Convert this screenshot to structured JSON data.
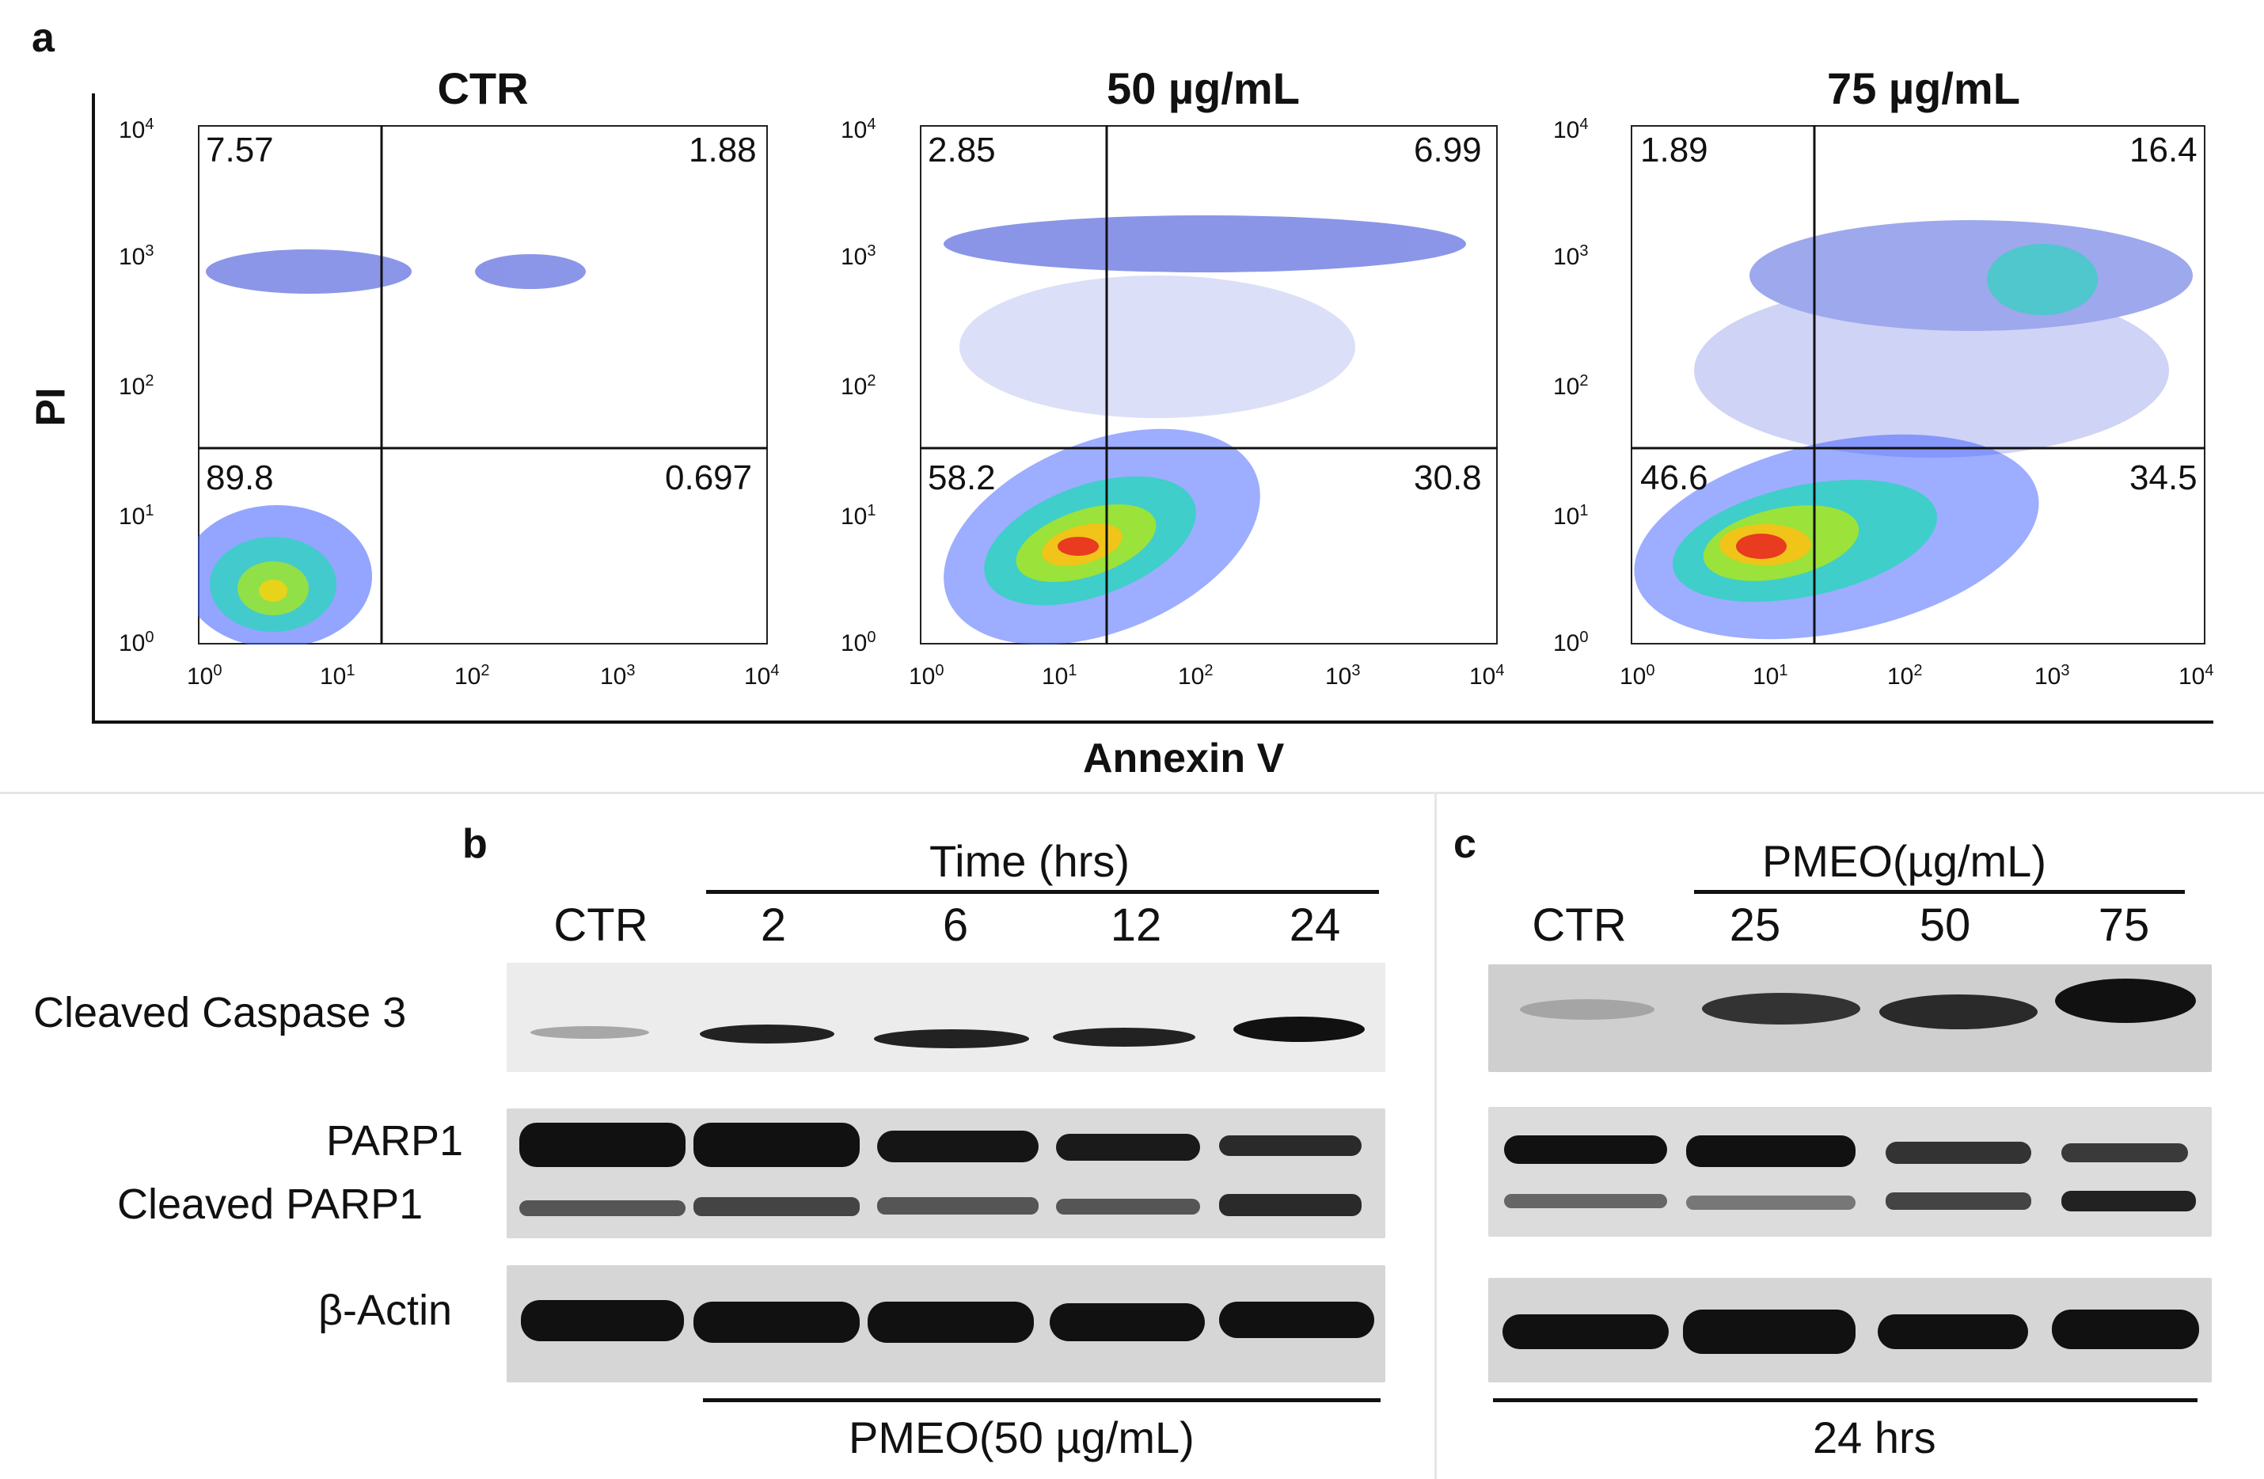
{
  "panel_a": {
    "letter": "a",
    "y_axis_label": "PI",
    "x_axis_label": "Annexin V",
    "ticks": [
      "10",
      "10",
      "10",
      "10",
      "10"
    ],
    "tick_exponents": [
      "0",
      "1",
      "2",
      "3",
      "4"
    ],
    "plots": [
      {
        "title": "CTR",
        "q_upper_left": "7.57",
        "q_upper_right": "1.88",
        "q_lower_left": "89.8",
        "q_lower_right": "0.697"
      },
      {
        "title": "50 µg/mL",
        "q_upper_left": "2.85",
        "q_upper_right": "6.99",
        "q_lower_left": "58.2",
        "q_lower_right": "30.8"
      },
      {
        "title": "75 µg/mL",
        "q_upper_left": "1.89",
        "q_upper_right": "16.4",
        "q_lower_left": "46.6",
        "q_lower_right": "34.5"
      }
    ]
  },
  "panel_b": {
    "letter": "b",
    "header": "Time (hrs)",
    "lanes": [
      "CTR",
      "2",
      "6",
      "12",
      "24"
    ],
    "rows": [
      "Cleaved Caspase 3",
      "PARP1",
      "Cleaved PARP1",
      "β-Actin"
    ],
    "footer": "PMEO(50 µg/mL)"
  },
  "panel_c": {
    "letter": "c",
    "header": "PMEO(µg/mL)",
    "lanes": [
      "CTR",
      "25",
      "50",
      "75"
    ],
    "footer": "24 hrs"
  }
}
